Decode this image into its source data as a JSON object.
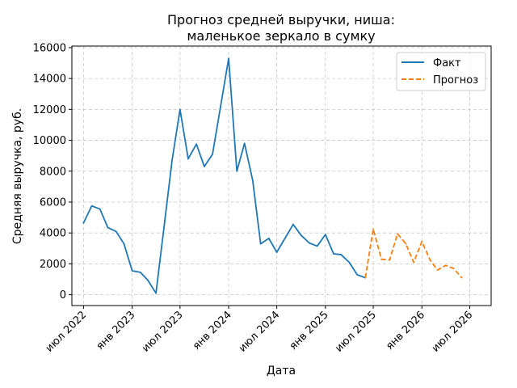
{
  "chart_data": {
    "type": "line",
    "title_lines": [
      "Прогноз средней выручки, ниша:",
      "маленькое зеркало в сумку"
    ],
    "xlabel": "Дата",
    "ylabel": "Средняя выручка, руб.",
    "ylim": [
      -700,
      16100
    ],
    "yticks": [
      0,
      2000,
      4000,
      6000,
      8000,
      10000,
      12000,
      14000,
      16000
    ],
    "xlim": [
      "2022-05-18",
      "2026-09-20"
    ],
    "xticks": [
      {
        "date": "2022-07-01",
        "label": "июл 2022"
      },
      {
        "date": "2023-01-01",
        "label": "янв 2023"
      },
      {
        "date": "2023-07-01",
        "label": "июл 2023"
      },
      {
        "date": "2024-01-01",
        "label": "янв 2024"
      },
      {
        "date": "2024-07-01",
        "label": "июл 2024"
      },
      {
        "date": "2025-01-01",
        "label": "янв 2025"
      },
      {
        "date": "2025-07-01",
        "label": "июл 2025"
      },
      {
        "date": "2026-01-01",
        "label": "янв 2026"
      },
      {
        "date": "2026-07-01",
        "label": "июл 2026"
      }
    ],
    "grid": true,
    "legend": "top-right",
    "series": [
      {
        "name": "Факт",
        "color": "#1f77b4",
        "style": "solid",
        "points": [
          [
            "2022-07-01",
            4650
          ],
          [
            "2022-08-01",
            5750
          ],
          [
            "2022-09-01",
            5550
          ],
          [
            "2022-10-01",
            4350
          ],
          [
            "2022-11-01",
            4100
          ],
          [
            "2022-12-01",
            3300
          ],
          [
            "2023-01-01",
            1550
          ],
          [
            "2023-02-01",
            1450
          ],
          [
            "2023-03-01",
            950
          ],
          [
            "2023-04-01",
            100
          ],
          [
            "2023-05-01",
            4300
          ],
          [
            "2023-06-01",
            8700
          ],
          [
            "2023-07-01",
            12000
          ],
          [
            "2023-08-01",
            8800
          ],
          [
            "2023-09-01",
            9750
          ],
          [
            "2023-10-01",
            8300
          ],
          [
            "2023-11-01",
            9100
          ],
          [
            "2023-12-01",
            12150
          ],
          [
            "2024-01-01",
            15300
          ],
          [
            "2024-02-01",
            8000
          ],
          [
            "2024-03-01",
            9800
          ],
          [
            "2024-04-01",
            7400
          ],
          [
            "2024-05-01",
            3300
          ],
          [
            "2024-06-01",
            3650
          ],
          [
            "2024-07-01",
            2750
          ],
          [
            "2024-08-01",
            3650
          ],
          [
            "2024-09-01",
            4550
          ],
          [
            "2024-10-01",
            3850
          ],
          [
            "2024-11-01",
            3350
          ],
          [
            "2024-12-01",
            3150
          ],
          [
            "2025-01-01",
            3900
          ],
          [
            "2025-02-01",
            2650
          ],
          [
            "2025-03-01",
            2600
          ],
          [
            "2025-04-01",
            2100
          ],
          [
            "2025-05-01",
            1300
          ],
          [
            "2025-06-01",
            1100
          ]
        ]
      },
      {
        "name": "Прогноз",
        "color": "#ff7f0e",
        "style": "dashed",
        "points": [
          [
            "2025-06-01",
            1100
          ],
          [
            "2025-07-01",
            4250
          ],
          [
            "2025-08-01",
            2300
          ],
          [
            "2025-09-01",
            2250
          ],
          [
            "2025-10-01",
            3950
          ],
          [
            "2025-11-01",
            3300
          ],
          [
            "2025-12-01",
            2100
          ],
          [
            "2026-01-01",
            3450
          ],
          [
            "2026-02-01",
            2250
          ],
          [
            "2026-03-01",
            1600
          ],
          [
            "2026-04-01",
            1900
          ],
          [
            "2026-05-01",
            1700
          ],
          [
            "2026-06-01",
            1100
          ]
        ]
      }
    ]
  }
}
